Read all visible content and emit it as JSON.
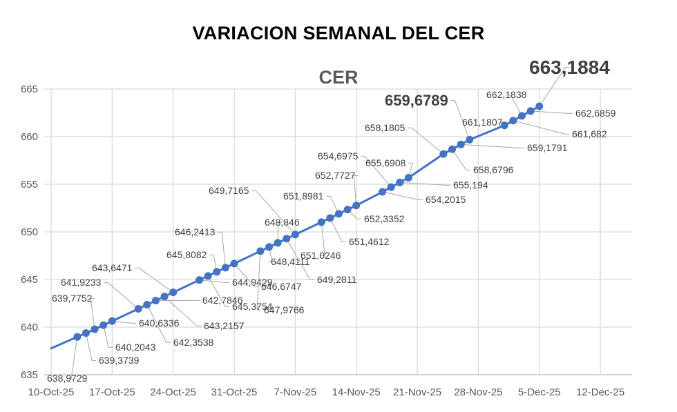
{
  "title": "VARIACION SEMANAL DEL CER",
  "chart_data": {
    "type": "line",
    "title": "CER",
    "xlabel": "",
    "ylabel": "",
    "ylim": [
      635,
      665
    ],
    "yticks": [
      "635",
      "640",
      "645",
      "650",
      "655",
      "660",
      "665"
    ],
    "xticks": [
      "10-Oct-25",
      "17-Oct-25",
      "24-Oct-25",
      "31-Oct-25",
      "7-Nov-25",
      "14-Nov-25",
      "21-Nov-25",
      "28-Nov-25",
      "5-Dec-25",
      "12-Dec-25"
    ],
    "grid": true,
    "legend": "none",
    "line_color": "#4472C4",
    "x": [
      "2025-10-13",
      "2025-10-14",
      "2025-10-15",
      "2025-10-16",
      "2025-10-17",
      "2025-10-20",
      "2025-10-21",
      "2025-10-22",
      "2025-10-23",
      "2025-10-24",
      "2025-10-27",
      "2025-10-28",
      "2025-10-29",
      "2025-10-30",
      "2025-10-31",
      "2025-11-03",
      "2025-11-04",
      "2025-11-05",
      "2025-11-06",
      "2025-11-07",
      "2025-11-10",
      "2025-11-11",
      "2025-11-12",
      "2025-11-13",
      "2025-11-14",
      "2025-11-17",
      "2025-11-18",
      "2025-11-19",
      "2025-11-20",
      "2025-11-24",
      "2025-11-25",
      "2025-11-26",
      "2025-11-27",
      "2025-12-01",
      "2025-12-02",
      "2025-12-03",
      "2025-12-04",
      "2025-12-05"
    ],
    "values": [
      638.9729,
      639.3739,
      639.7752,
      640.2043,
      640.6336,
      641.9233,
      642.3538,
      642.7846,
      643.2157,
      643.6471,
      644.9429,
      645.3754,
      645.8082,
      646.2413,
      646.6747,
      647.9766,
      648.4111,
      648.846,
      649.2811,
      649.7165,
      651.0246,
      651.4612,
      651.8981,
      652.3352,
      652.7727,
      654.2015,
      654.6975,
      655.194,
      655.6908,
      658.1805,
      658.6796,
      659.1791,
      659.6789,
      661.1807,
      661.682,
      662.1838,
      662.6859,
      663.1884
    ],
    "data_labels": [
      "638,9729",
      "639,3739",
      "639,7752",
      "640,2043",
      "640,6336",
      "641,9233",
      "642,3538",
      "642,7846",
      "643,2157",
      "643,6471",
      "644,9429",
      "645,3754",
      "645,8082",
      "646,2413",
      "646,6747",
      "647,9766",
      "648,4111",
      "648,846",
      "649,2811",
      "649,7165",
      "651,0246",
      "651,4612",
      "651,8981",
      "652,3352",
      "652,7727",
      "654,2015",
      "654,6975",
      "655,194",
      "655,6908",
      "658,1805",
      "658,6796",
      "659,1791",
      "659,6789",
      "661,1807",
      "661,682",
      "662,1838",
      "662,6859",
      "663,1884"
    ]
  }
}
